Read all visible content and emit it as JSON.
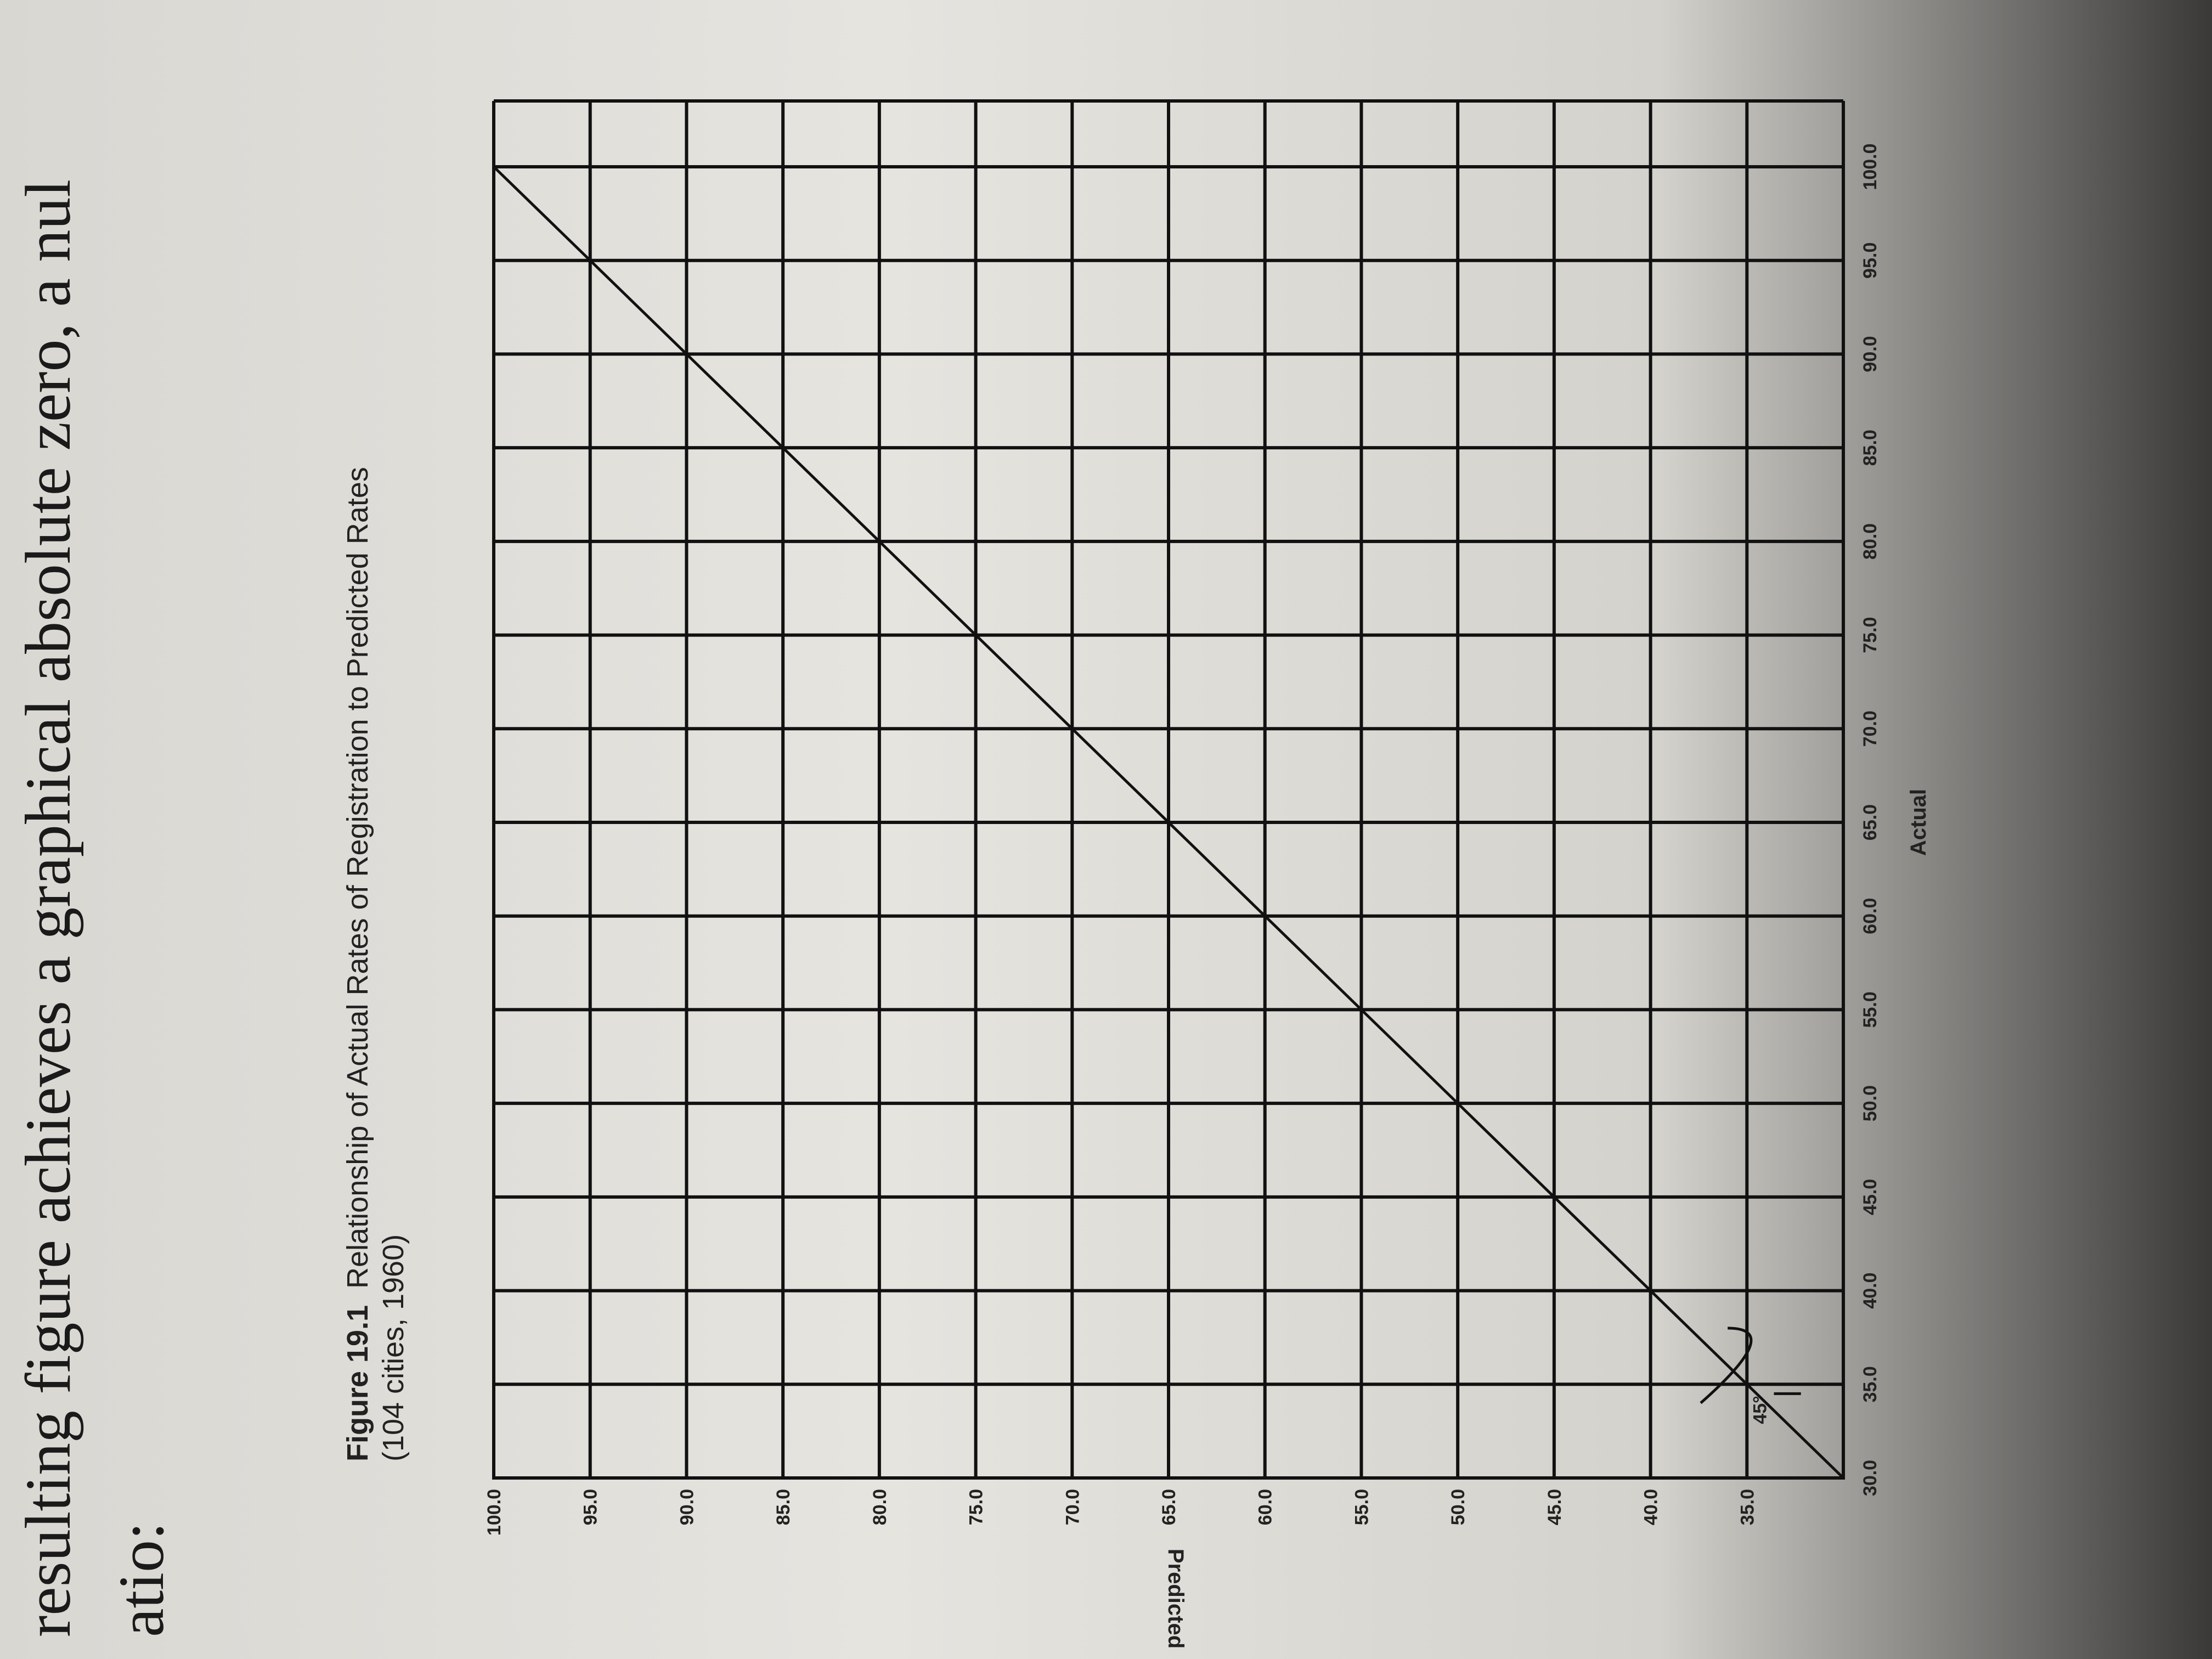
{
  "page_text": {
    "line1": "resulting figure achieves a graphical absolute zero, a nul",
    "line2": "atio:"
  },
  "chart_data": {
    "type": "line",
    "figure_number": "Figure 19.1",
    "title": "Relationship of Actual Rates of Registration to Predicted Rates",
    "subtitle": "(104 cities, 1960)",
    "xlabel": "Actual",
    "ylabel": "Predicted",
    "xlim": [
      30,
      100
    ],
    "ylim": [
      30,
      100
    ],
    "x_ticks": [
      "30.0",
      "35.0",
      "40.0",
      "45.0",
      "50.0",
      "55.0",
      "60.0",
      "65.0",
      "70.0",
      "75.0",
      "80.0",
      "85.0",
      "90.0",
      "95.0",
      "100.0"
    ],
    "y_ticks": [
      "30.0",
      "35.0",
      "40.0",
      "45.0",
      "50.0",
      "55.0",
      "60.0",
      "65.0",
      "70.0",
      "75.0",
      "80.0",
      "85.0",
      "90.0",
      "95.0",
      "100.0"
    ],
    "grid": true,
    "series": [
      {
        "x": [
          30,
          100
        ],
        "y": [
          30,
          100
        ]
      }
    ],
    "annotations": [
      {
        "text": "45°",
        "x": 32,
        "y": 34
      }
    ]
  }
}
